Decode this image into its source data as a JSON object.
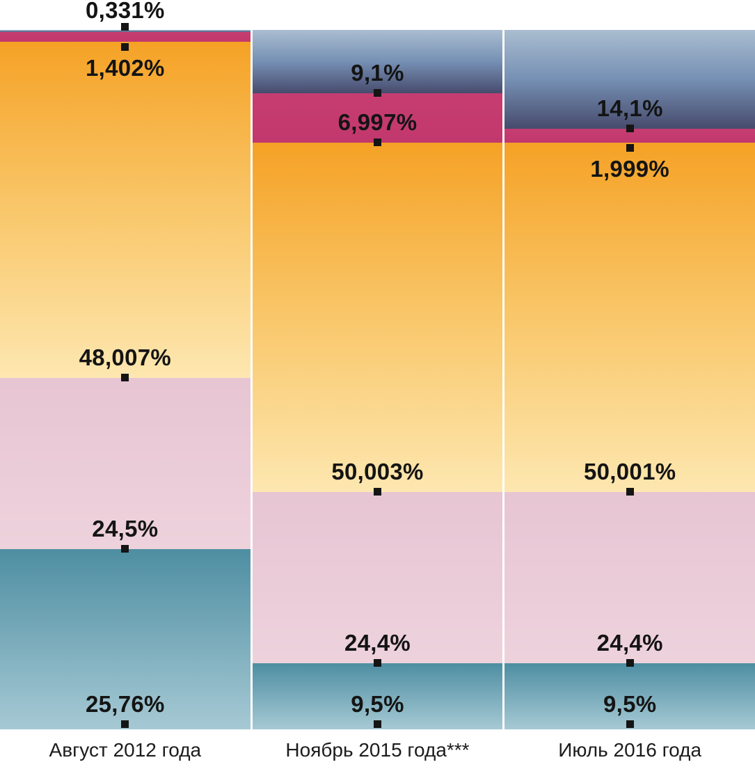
{
  "chart_data": {
    "type": "bar",
    "variant": "stacked-100-percent",
    "title": "",
    "xlabel": "",
    "ylabel": "",
    "ylim": [
      0,
      100
    ],
    "grid": false,
    "legend": "none",
    "decimal_separator": ",",
    "marker_color": "#151515",
    "label_color": "#141414",
    "categories": [
      "Август 2012 года",
      "Ноябрь 2015 года***",
      "Июль 2016 года"
    ],
    "series": [
      {
        "name": "slate-blue-top",
        "gradient": [
          "#aabdd0",
          "#7590b4",
          "#474b6d"
        ],
        "values": [
          0.331,
          9.1,
          14.1
        ],
        "labels": [
          "0,331%",
          "9,1%",
          "14,1%"
        ]
      },
      {
        "name": "magenta",
        "gradient": [
          "#c63d71",
          "#c2386d"
        ],
        "values": [
          1.402,
          6.997,
          1.999
        ],
        "labels": [
          "1,402%",
          "6,997%",
          "1,999%"
        ]
      },
      {
        "name": "orange",
        "gradient": [
          "#f5a226",
          "#f9c76a",
          "#fde7b0"
        ],
        "values": [
          48.007,
          50.003,
          50.001
        ],
        "labels": [
          "48,007%",
          "50,003%",
          "50,001%"
        ]
      },
      {
        "name": "pink",
        "gradient": [
          "#e7c5d3",
          "#edd2dc"
        ],
        "values": [
          24.5,
          24.4,
          24.4
        ],
        "labels": [
          "24,5%",
          "24,4%",
          "24,4%"
        ]
      },
      {
        "name": "teal",
        "gradient": [
          "#4e8ea2",
          "#a6c9d4"
        ],
        "values": [
          25.76,
          9.5,
          9.5
        ],
        "labels": [
          "25,76%",
          "9,5%",
          "9,5%"
        ]
      }
    ]
  }
}
